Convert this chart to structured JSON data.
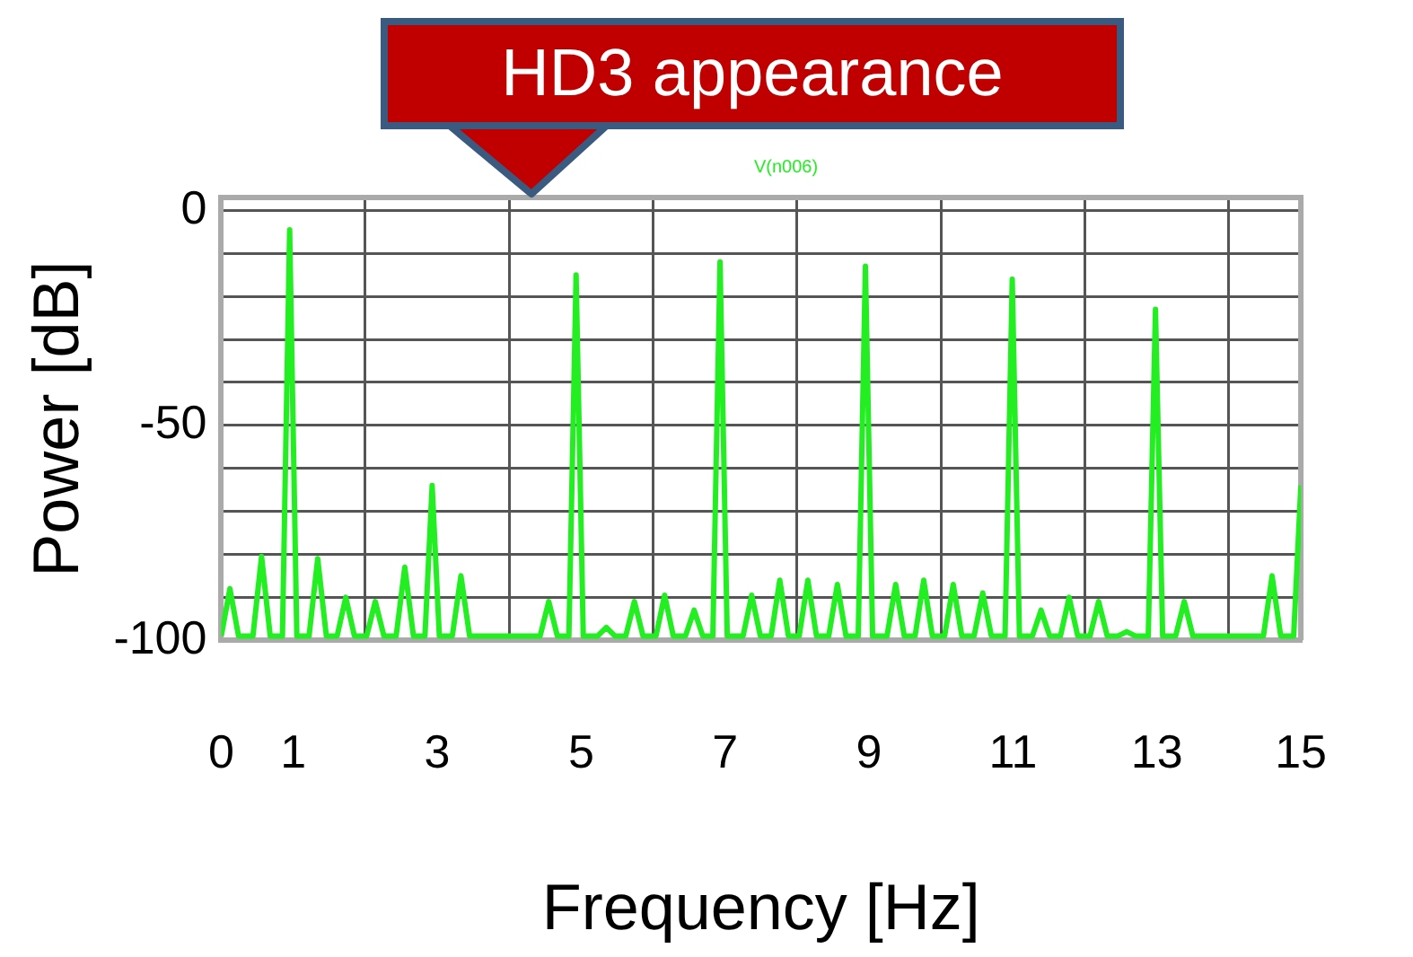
{
  "chart_data": {
    "type": "line",
    "xlabel": "Frequency [Hz]",
    "ylabel": "Power [dB]",
    "annotations": [
      "HD3 appearance"
    ],
    "xlim": [
      0,
      15
    ],
    "ylim": [
      -100,
      3
    ],
    "xticks": [
      0,
      1,
      {
        "value": 2,
        "label": null
      },
      3,
      {
        "value": 4,
        "label": null
      },
      5,
      {
        "value": 6,
        "label": null
      },
      7,
      {
        "value": 8,
        "label": null
      },
      9,
      {
        "value": 10,
        "label": null
      },
      11,
      {
        "value": 12,
        "label": null
      },
      13,
      {
        "value": 14,
        "label": null
      },
      15
    ],
    "yticks": [
      -100,
      {
        "value": -90,
        "label": null
      },
      {
        "value": -80,
        "label": null
      },
      {
        "value": -70,
        "label": null
      },
      {
        "value": -60,
        "label": null
      },
      -50,
      {
        "value": -40,
        "label": null
      },
      {
        "value": -30,
        "label": null
      },
      {
        "value": -20,
        "label": null
      },
      {
        "value": -10,
        "label": null
      },
      0
    ],
    "grid": true,
    "legend": "top",
    "marker": "none",
    "line_style": "solid",
    "series": [
      {
        "name": "V(n006)",
        "color": "#22ee22",
        "x": [
          0,
          0.12,
          0.24,
          0.44,
          0.56,
          0.68,
          0.85,
          0.95,
          1.05,
          1.22,
          1.34,
          1.46,
          1.61,
          1.73,
          1.85,
          2.02,
          2.14,
          2.26,
          2.43,
          2.55,
          2.67,
          2.83,
          2.93,
          3.03,
          3.21,
          3.33,
          3.45,
          4.43,
          4.55,
          4.67,
          4.83,
          4.93,
          5.03,
          5.23,
          5.35,
          5.47,
          5.62,
          5.74,
          5.86,
          6.04,
          6.16,
          6.28,
          6.45,
          6.57,
          6.69,
          6.83,
          6.93,
          7.03,
          7.25,
          7.37,
          7.49,
          7.64,
          7.76,
          7.88,
          8.03,
          8.15,
          8.27,
          8.44,
          8.56,
          8.68,
          8.85,
          8.95,
          9.05,
          9.25,
          9.37,
          9.49,
          9.64,
          9.76,
          9.88,
          10.05,
          10.17,
          10.29,
          10.46,
          10.58,
          10.7,
          10.89,
          10.99,
          11.09,
          11.27,
          11.39,
          11.51,
          11.66,
          11.78,
          11.9,
          12.07,
          12.19,
          12.31,
          12.46,
          12.58,
          12.7,
          12.88,
          12.98,
          13.08,
          13.26,
          13.38,
          13.5,
          14.48,
          14.6,
          14.72,
          14.9,
          15
        ],
        "values": [
          -99,
          -88,
          -99,
          -99,
          -80.5,
          -99,
          -99,
          -4.5,
          -99,
          -99,
          -81,
          -99,
          -99,
          -90,
          -99,
          -99,
          -91,
          -99,
          -99,
          -83,
          -99,
          -99,
          -64,
          -99,
          -99,
          -85,
          -99,
          -99,
          -91,
          -99,
          -99,
          -15,
          -99,
          -99,
          -97,
          -99,
          -99,
          -91,
          -99,
          -99,
          -89.5,
          -99,
          -99,
          -93,
          -99,
          -99,
          -12,
          -99,
          -99,
          -89.5,
          -99,
          -99,
          -86,
          -99,
          -99,
          -86,
          -99,
          -99,
          -87,
          -99,
          -99,
          -13,
          -99,
          -99,
          -87,
          -99,
          -99,
          -86,
          -99,
          -99,
          -87,
          -99,
          -99,
          -89,
          -99,
          -99,
          -16,
          -99,
          -99,
          -93,
          -99,
          -99,
          -90,
          -99,
          -99,
          -91,
          -99,
          -99,
          -98,
          -99,
          -99,
          -23,
          -99,
          -99,
          -91,
          -99,
          -99,
          -85,
          -99,
          -99,
          -64
        ]
      }
    ]
  }
}
